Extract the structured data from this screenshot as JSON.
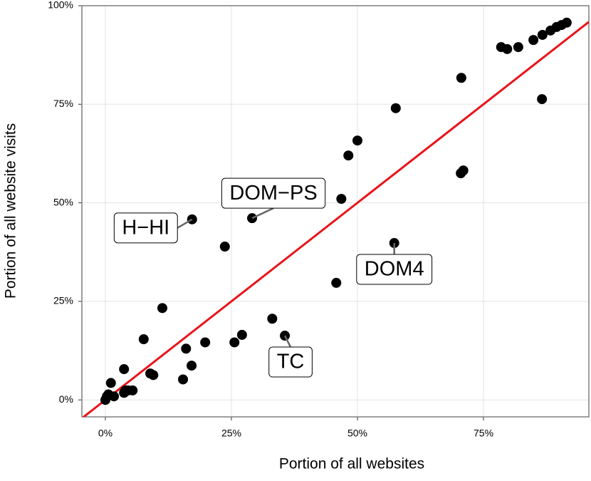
{
  "chart_data": {
    "type": "scatter",
    "x_label": "Portion of all websites",
    "y_label": "Portion of all website visits",
    "x": [
      0,
      0.3,
      0.6,
      1.1,
      1.7,
      3.7,
      3.7,
      4.0,
      4.5,
      5.4,
      7.6,
      8.9,
      9.5,
      11.3,
      15.4,
      16.0,
      17.1,
      17.2,
      19.8,
      23.7,
      25.6,
      27.1,
      29.1,
      33.1,
      35.6,
      45.8,
      46.8,
      48.2,
      50.0,
      57.3,
      57.6,
      70.5,
      70.6,
      71.0,
      78.5,
      79.7,
      81.9,
      84.9,
      86.6,
      86.7,
      88.3,
      89.5,
      90.5,
      91.5
    ],
    "values": [
      0,
      0.9,
      1.4,
      4.3,
      0.9,
      7.8,
      1.8,
      2.4,
      2.4,
      2.4,
      15.4,
      6.7,
      6.3,
      23.3,
      5.2,
      13.0,
      8.7,
      45.8,
      14.6,
      38.9,
      14.6,
      16.5,
      46.1,
      20.6,
      16.3,
      29.7,
      51.0,
      62.0,
      65.8,
      39.8,
      74.0,
      57.5,
      81.7,
      58.2,
      89.5,
      89.0,
      89.5,
      91.3,
      76.3,
      92.6,
      93.7,
      94.6,
      95.1,
      95.7
    ],
    "point_labels": [
      null,
      null,
      null,
      null,
      null,
      null,
      null,
      null,
      null,
      null,
      null,
      null,
      null,
      null,
      null,
      null,
      null,
      "H−HI",
      null,
      null,
      null,
      null,
      "DOM−PS",
      null,
      "TC",
      null,
      null,
      null,
      null,
      "DOM4",
      null,
      null,
      null,
      null,
      null,
      null,
      null,
      null,
      null,
      null,
      null,
      null,
      null,
      null
    ],
    "color": "#000000",
    "reference_line": {
      "slope": 1,
      "intercept": 0,
      "color": "#e8141a"
    },
    "xlim": [
      -4.66,
      95.9
    ],
    "ylim": [
      -4.3,
      100
    ],
    "xticks": [
      {
        "value": 0,
        "label": "0%"
      },
      {
        "value": 25,
        "label": "25%"
      },
      {
        "value": 50,
        "label": "50%"
      },
      {
        "value": 75,
        "label": "75%"
      }
    ],
    "yticks": [
      {
        "value": 0,
        "label": "0%"
      },
      {
        "value": 25,
        "label": "25%"
      },
      {
        "value": 50,
        "label": "50%"
      },
      {
        "value": 75,
        "label": "75%"
      },
      {
        "value": 100,
        "label": "100%"
      }
    ],
    "grid": true
  }
}
